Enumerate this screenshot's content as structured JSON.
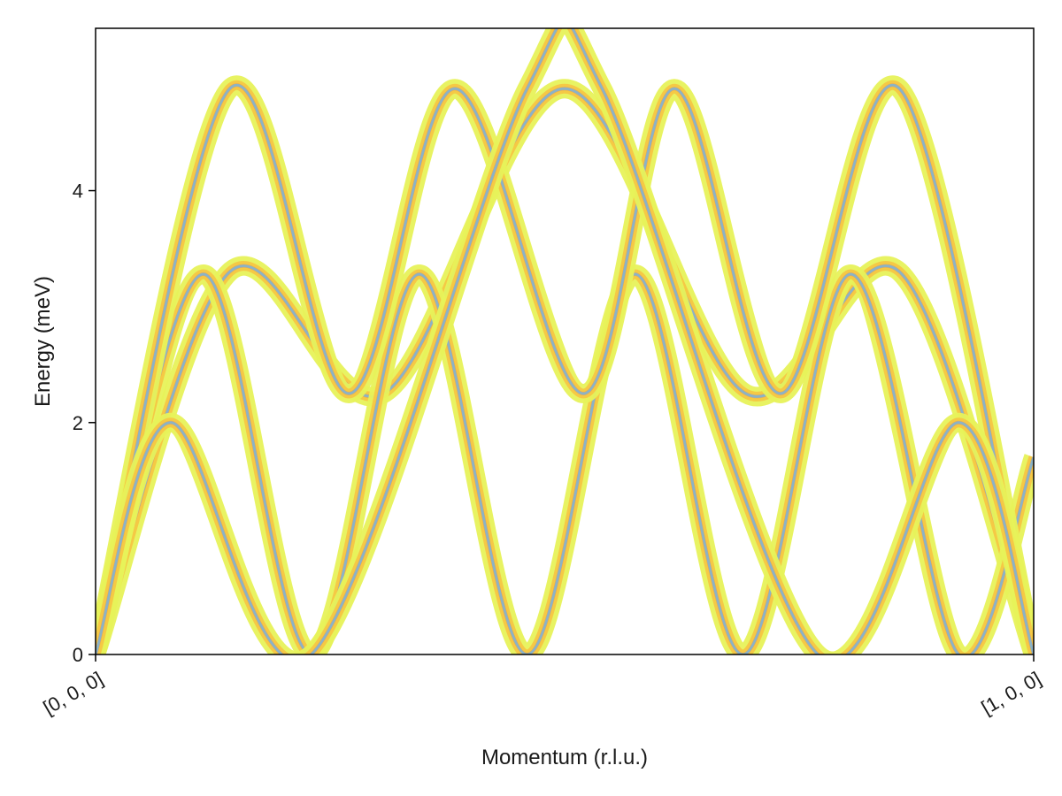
{
  "chart_data": {
    "type": "line",
    "title": "",
    "xlabel": "Momentum (r.l.u.)",
    "ylabel": "Energy (meV)",
    "xlim": [
      0,
      1
    ],
    "ylim": [
      0,
      5.4
    ],
    "x_ticks": [
      {
        "value": 0,
        "label": "[0, 0, 0]"
      },
      {
        "value": 1,
        "label": "[1, 0, 0]"
      }
    ],
    "y_ticks": [
      {
        "value": 0,
        "label": "0"
      },
      {
        "value": 2,
        "label": "2"
      },
      {
        "value": 4,
        "label": "4"
      }
    ],
    "grid": false,
    "legend": "none",
    "colors": {
      "dispersion_line": "#8bb3c6",
      "intensity_low": "#e7f25a",
      "intensity_mid": "#f6c443",
      "intensity_high": "#f2924a",
      "axis": "#000000"
    },
    "series": [
      {
        "x": [
          0,
          0.143,
          0.307,
          0.5,
          0.693,
          0.857,
          1
        ],
        "y": [
          0,
          3.3,
          2.25,
          4.88,
          2.25,
          3.3,
          0
        ]
      },
      {
        "x": [
          0,
          0.115,
          0.23,
          0.345,
          0.46,
          0.575,
          0.69,
          0.805,
          0.92,
          1
        ],
        "y": [
          0,
          3.28,
          0,
          3.28,
          0,
          3.28,
          0,
          3.28,
          0,
          1.7
        ]
      },
      {
        "x": [
          0,
          0.143,
          0.27,
          0.383,
          0.52,
          0.617,
          0.73,
          0.857,
          1
        ],
        "y": [
          0,
          4.88,
          2.25,
          4.88,
          2.25,
          4.88,
          2.25,
          4.88,
          0
        ]
      },
      {
        "x": [
          0,
          0.08,
          0.23,
          0.46,
          0.54,
          0.77,
          0.92,
          1
        ],
        "y": [
          0,
          2.0,
          0,
          4.88,
          4.88,
          0,
          2.0,
          0
        ]
      }
    ]
  }
}
